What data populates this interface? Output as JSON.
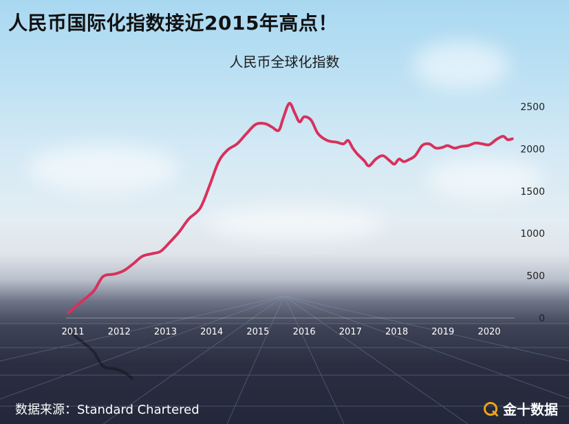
{
  "page": {
    "title": "人民币国际化指数接近2015年高点！",
    "source": "数据来源：Standard Chartered",
    "brand": "金十数据"
  },
  "colors": {
    "line": "#d8315b",
    "axis_text": "#1f1f1f",
    "x_tick_text": "#ffffff"
  },
  "chart_data": {
    "type": "line",
    "title": "人民币全球化指数",
    "xlabel": "",
    "ylabel": "",
    "xlim": [
      2010.85,
      2020.55
    ],
    "ylim": [
      0,
      2500
    ],
    "x_ticks": [
      2011,
      2012,
      2013,
      2014,
      2015,
      2016,
      2017,
      2018,
      2019,
      2020
    ],
    "y_ticks": [
      0,
      500,
      1000,
      1500,
      2000,
      2500
    ],
    "y_axis_side": "right",
    "grid": false,
    "legend": "none",
    "series": [
      {
        "values": [
          [
            2010.9,
            60
          ],
          [
            2011.0,
            110
          ],
          [
            2011.2,
            200
          ],
          [
            2011.45,
            320
          ],
          [
            2011.65,
            490
          ],
          [
            2011.9,
            520
          ],
          [
            2012.1,
            560
          ],
          [
            2012.3,
            640
          ],
          [
            2012.5,
            730
          ],
          [
            2012.7,
            760
          ],
          [
            2012.9,
            790
          ],
          [
            2013.1,
            900
          ],
          [
            2013.3,
            1020
          ],
          [
            2013.5,
            1170
          ],
          [
            2013.75,
            1300
          ],
          [
            2013.95,
            1560
          ],
          [
            2014.15,
            1850
          ],
          [
            2014.35,
            1990
          ],
          [
            2014.55,
            2060
          ],
          [
            2014.75,
            2180
          ],
          [
            2014.95,
            2290
          ],
          [
            2015.15,
            2300
          ],
          [
            2015.3,
            2260
          ],
          [
            2015.45,
            2220
          ],
          [
            2015.55,
            2370
          ],
          [
            2015.68,
            2540
          ],
          [
            2015.8,
            2420
          ],
          [
            2015.9,
            2320
          ],
          [
            2016.0,
            2380
          ],
          [
            2016.15,
            2340
          ],
          [
            2016.3,
            2180
          ],
          [
            2016.5,
            2100
          ],
          [
            2016.7,
            2080
          ],
          [
            2016.85,
            2060
          ],
          [
            2016.95,
            2100
          ],
          [
            2017.05,
            2010
          ],
          [
            2017.15,
            1940
          ],
          [
            2017.3,
            1860
          ],
          [
            2017.4,
            1800
          ],
          [
            2017.55,
            1880
          ],
          [
            2017.7,
            1920
          ],
          [
            2017.85,
            1860
          ],
          [
            2017.95,
            1820
          ],
          [
            2018.05,
            1880
          ],
          [
            2018.15,
            1850
          ],
          [
            2018.25,
            1870
          ],
          [
            2018.4,
            1920
          ],
          [
            2018.55,
            2040
          ],
          [
            2018.7,
            2060
          ],
          [
            2018.85,
            2010
          ],
          [
            2019.0,
            2020
          ],
          [
            2019.1,
            2040
          ],
          [
            2019.25,
            2010
          ],
          [
            2019.4,
            2030
          ],
          [
            2019.55,
            2040
          ],
          [
            2019.7,
            2070
          ],
          [
            2019.85,
            2060
          ],
          [
            2020.0,
            2050
          ],
          [
            2020.15,
            2110
          ],
          [
            2020.3,
            2150
          ],
          [
            2020.4,
            2110
          ],
          [
            2020.5,
            2120
          ]
        ]
      }
    ]
  }
}
